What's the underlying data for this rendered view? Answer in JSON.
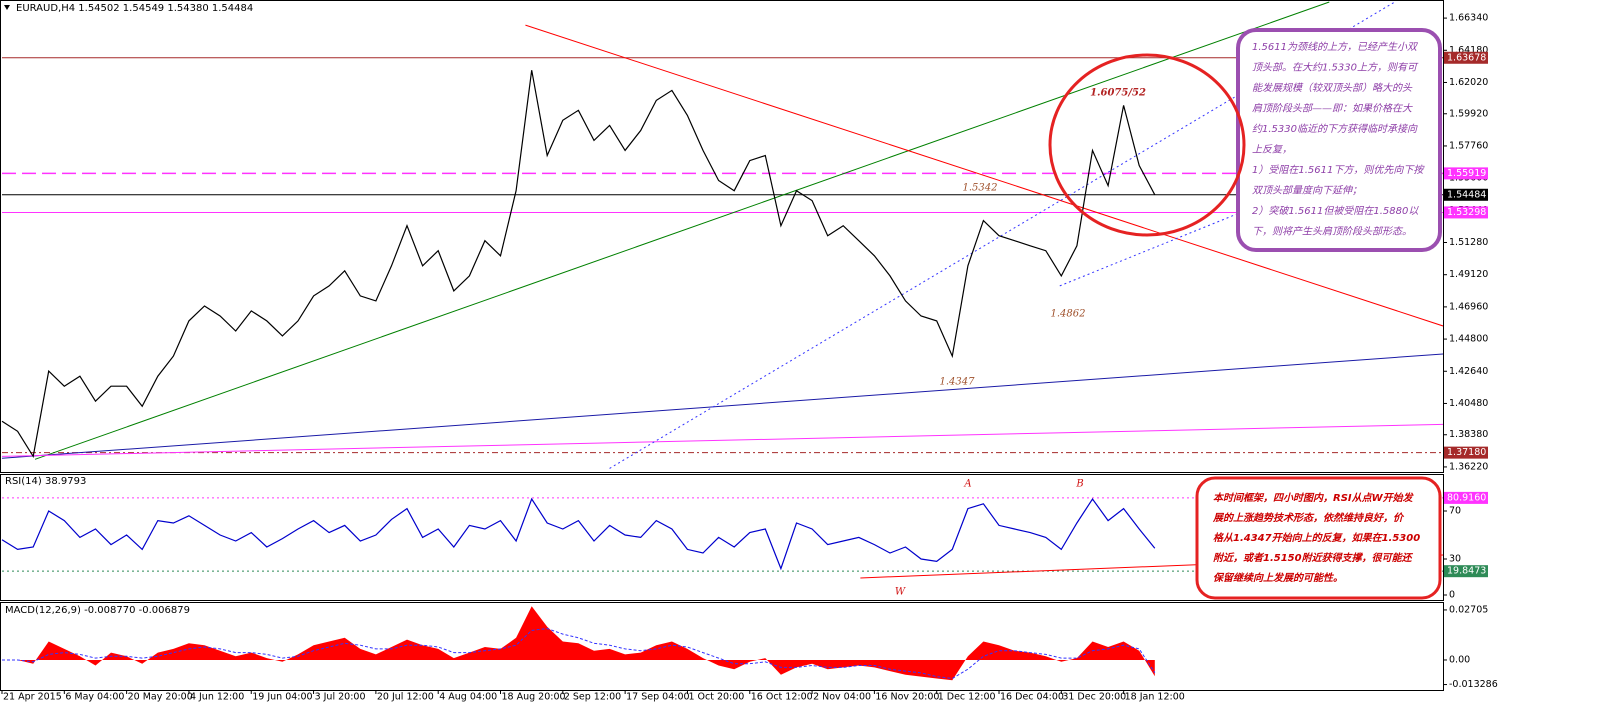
{
  "chart_data": [
    {
      "type": "line",
      "title": "EURAUD,H4  1.54502 1.54549 1.54380 1.54484",
      "color": "#000000",
      "values": [
        1.3929,
        1.3861,
        1.3693,
        1.4265,
        1.4164,
        1.4231,
        1.4063,
        1.4164,
        1.4164,
        1.4029,
        1.4231,
        1.4366,
        1.4602,
        1.4702,
        1.4635,
        1.4534,
        1.4669,
        1.4602,
        1.4501,
        1.4602,
        1.477,
        1.4837,
        1.4938,
        1.477,
        1.4736,
        1.4972,
        1.5241,
        1.4972,
        1.5073,
        1.4803,
        1.4904,
        1.514,
        1.5039,
        1.5476,
        1.6284,
        1.5712,
        1.5948,
        1.6015,
        1.5813,
        1.5914,
        1.5746,
        1.588,
        1.6082,
        1.6149,
        1.5981,
        1.5746,
        1.5544,
        1.5476,
        1.5678,
        1.5712,
        1.5241,
        1.5476,
        1.5409,
        1.5174,
        1.5241,
        1.514,
        1.5039,
        1.4904,
        1.4736,
        1.4635,
        1.4602,
        1.4366,
        1.4972,
        1.5275,
        1.5174,
        1.514,
        1.5106,
        1.5073,
        1.4904,
        1.5106,
        1.5746,
        1.551,
        1.6048,
        1.5645,
        1.54484
      ],
      "xlim": [
        0,
        92.5
      ],
      "ylim": [
        1.3588,
        1.6742
      ],
      "yticks": [
        {
          "value": 1.6634,
          "label": "1.66340"
        },
        {
          "value": 1.6418,
          "label": "1.64180"
        },
        {
          "value": 1.6202,
          "label": "1.62020"
        },
        {
          "value": 1.5992,
          "label": "1.59920"
        },
        {
          "value": 1.5776,
          "label": "1.57760"
        },
        {
          "value": 1.556,
          "label": "1.55600"
        },
        {
          "value": 1.5344,
          "label": "1.53440"
        },
        {
          "value": 1.5128,
          "label": "1.51280"
        },
        {
          "value": 1.4912,
          "label": "1.49120"
        },
        {
          "value": 1.4696,
          "label": "1.46960"
        },
        {
          "value": 1.448,
          "label": "1.44800"
        },
        {
          "value": 1.4264,
          "label": "1.42640"
        },
        {
          "value": 1.4048,
          "label": "1.40480"
        },
        {
          "value": 1.3838,
          "label": "1.38380"
        },
        {
          "value": 1.3622,
          "label": "1.36220"
        }
      ],
      "levels": [
        {
          "value": 1.63678,
          "color": "#a52a2a",
          "style": "solid"
        },
        {
          "value": 1.55919,
          "color": "#ff33ff",
          "style": "dashed"
        },
        {
          "value": 1.54484,
          "color": "#000000",
          "style": "solid"
        },
        {
          "value": 1.53298,
          "color": "#ff33ff",
          "style": "solid"
        },
        {
          "value": 1.3718,
          "label": "1.37180",
          "color": "#a52a2a",
          "style": "dashdot"
        }
      ],
      "trendlines": [
        {
          "color": "#008000",
          "style": "solid",
          "x": [
            2.12,
            85.2
          ],
          "values": [
            1.3673,
            1.6742
          ]
        },
        {
          "color": "#ff0000",
          "style": "solid",
          "x": [
            33.6,
            92.5
          ],
          "values": [
            1.6587,
            1.4568
          ]
        },
        {
          "color": "#1a1aa6",
          "style": "solid",
          "x": [
            0,
            92.5
          ],
          "values": [
            1.368,
            1.438
          ]
        },
        {
          "color": "#ff33ff",
          "style": "solid",
          "x": [
            0,
            92.5
          ],
          "values": [
            1.3693,
            1.3908
          ]
        },
        {
          "color": "#3333ff",
          "style": "dotted",
          "x": [
            39,
            89.4
          ],
          "values": [
            1.3612,
            1.6742
          ]
        },
        {
          "color": "#3333ff",
          "style": "dotted",
          "x": [
            67.9,
            92.5
          ],
          "values": [
            1.4837,
            1.588
          ]
        }
      ],
      "annotations": [
        "1.6075/52",
        "1.5342",
        "1.4862",
        "1.4347"
      ],
      "note": [
        "1.5611为颈线的上方，已经产生小双",
        "顶头部。在大约1.5330上方，则有可",
        "能发展规模（较双顶头部）略大的头",
        "肩顶阶段头部——即：如果价格在大",
        "约1.5330临近的下方获得临时承接向",
        "上反复，",
        "1）受阻在1.5611下方，则优先向下按",
        "双顶头部量度向下延伸；",
        "2）突破1.5611但被受阻在1.5880以",
        "下，则将产生头肩顶阶段头部形态。"
      ]
    },
    {
      "type": "line",
      "title": "RSI(14) 38.9793",
      "color": "#0000cc",
      "values": [
        46,
        38,
        40,
        70,
        62,
        48,
        55,
        42,
        50,
        38,
        62,
        60,
        66,
        58,
        50,
        45,
        52,
        40,
        47,
        55,
        62,
        52,
        58,
        45,
        50,
        63,
        72,
        48,
        55,
        40,
        58,
        55,
        62,
        45,
        80,
        60,
        55,
        62,
        45,
        58,
        50,
        48,
        62,
        55,
        38,
        35,
        48,
        40,
        52,
        55,
        22,
        60,
        55,
        42,
        45,
        48,
        42,
        35,
        40,
        30,
        28,
        38,
        72,
        76,
        58,
        55,
        52,
        48,
        38,
        60,
        80,
        62,
        72,
        55,
        38.9793
      ],
      "xlim": [
        0,
        92.5
      ],
      "ylim": [
        0,
        100
      ],
      "yticks": [
        70,
        30,
        0
      ],
      "levels": [
        {
          "value": 80.916,
          "label": "80.9160",
          "color": "#ff33ff",
          "style": "dotted"
        },
        {
          "value": 19.8473,
          "color": "#2e8b57",
          "style": "dotted"
        }
      ],
      "trendlines": [
        {
          "color": "#ff0000",
          "style": "solid",
          "x": [
            55.1,
            92.5
          ],
          "values": [
            14.2,
            33.3
          ]
        }
      ],
      "annotations": [
        "A",
        "B",
        "W"
      ],
      "note": [
        "本时间框架，四小时图内，RSI从点W开始发",
        "展的上涨趋势技术形态，依然维持良好，价",
        "格从1.4347开始向上的反复，如果在1.5300",
        "附近，或者1.5150附近获得支撑，很可能还",
        "保留继续向上发展的可能性。"
      ]
    },
    {
      "type": "area",
      "title": "MACD(12,26,9) -0.008770 -0.006879",
      "color": "#ff0000",
      "signal_color": "#3333ff",
      "categories": [
        "21 Apr 2015",
        null,
        null,
        null,
        "6 May 04:00",
        null,
        null,
        null,
        "20 May 20:00",
        null,
        null,
        null,
        "4 Jun 12:00",
        null,
        null,
        null,
        "19 Jun 04:00",
        null,
        null,
        null,
        "3 Jul 20:00",
        null,
        null,
        null,
        "20 Jul 12:00",
        null,
        null,
        null,
        "4 Aug 04:00",
        null,
        null,
        null,
        "18 Aug 20:00",
        null,
        null,
        null,
        "2 Sep 12:00",
        null,
        null,
        null,
        "17 Sep 04:00",
        null,
        null,
        null,
        "1 Oct 20:00",
        null,
        null,
        null,
        "16 Oct 12:00",
        null,
        null,
        null,
        "2 Nov 04:00",
        null,
        null,
        null,
        "16 Nov 20:00",
        null,
        null,
        null,
        "1 Dec 12:00",
        null,
        null,
        null,
        "16 Dec 04:00",
        null,
        null,
        null,
        "31 Dec 20:00",
        null,
        null,
        null,
        "18 Jan 12:00",
        null,
        null
      ],
      "values": [
        0,
        0,
        -0.002,
        0.01,
        0.006,
        0.002,
        -0.003,
        0.004,
        0.002,
        -0.002,
        0.004,
        0.006,
        0.009,
        0.008,
        0.005,
        0.002,
        0.004,
        0.001,
        -0.001,
        0.003,
        0.008,
        0.01,
        0.012,
        0.006,
        0.003,
        0.007,
        0.011,
        0.008,
        0.006,
        0.001,
        0.004,
        0.007,
        0.006,
        0.012,
        0.029,
        0.018,
        0.01,
        0.009,
        0.005,
        0.006,
        0.003,
        0.004,
        0.008,
        0.01,
        0.006,
        0.001,
        -0.003,
        -0.005,
        -0.001,
        0.001,
        -0.008,
        -0.004,
        -0.002,
        -0.005,
        -0.004,
        -0.003,
        -0.004,
        -0.006,
        -0.008,
        -0.009,
        -0.01,
        -0.011,
        0.002,
        0.01,
        0.008,
        0.005,
        0.004,
        0.002,
        -0.001,
        0.001,
        0.01,
        0.007,
        0.01,
        0.005,
        -0.00877
      ],
      "signal": [
        0,
        0,
        -0.001,
        0.003,
        0.004,
        0.003,
        0.001,
        0.002,
        0.002,
        0.001,
        0.002,
        0.004,
        0.006,
        0.007,
        0.006,
        0.004,
        0.004,
        0.003,
        0.001,
        0.002,
        0.005,
        0.007,
        0.009,
        0.008,
        0.006,
        0.006,
        0.008,
        0.008,
        0.007,
        0.004,
        0.004,
        0.005,
        0.006,
        0.008,
        0.016,
        0.017,
        0.014,
        0.012,
        0.009,
        0.008,
        0.006,
        0.005,
        0.006,
        0.008,
        0.007,
        0.004,
        0.001,
        -0.002,
        -0.002,
        -0.001,
        -0.004,
        -0.004,
        -0.003,
        -0.004,
        -0.004,
        -0.003,
        -0.003,
        -0.005,
        -0.006,
        -0.007,
        -0.009,
        -0.01,
        -0.005,
        0.002,
        0.005,
        0.005,
        0.004,
        0.003,
        0.001,
        0.001,
        0.005,
        0.006,
        0.008,
        0.006,
        -0.006879
      ],
      "xlim": [
        0,
        92.5
      ],
      "ylim": [
        -0.01623,
        0.0308
      ],
      "yticks": [
        0.02705,
        {
          "value": 0,
          "label": "0.00"
        },
        -0.013286
      ]
    }
  ]
}
